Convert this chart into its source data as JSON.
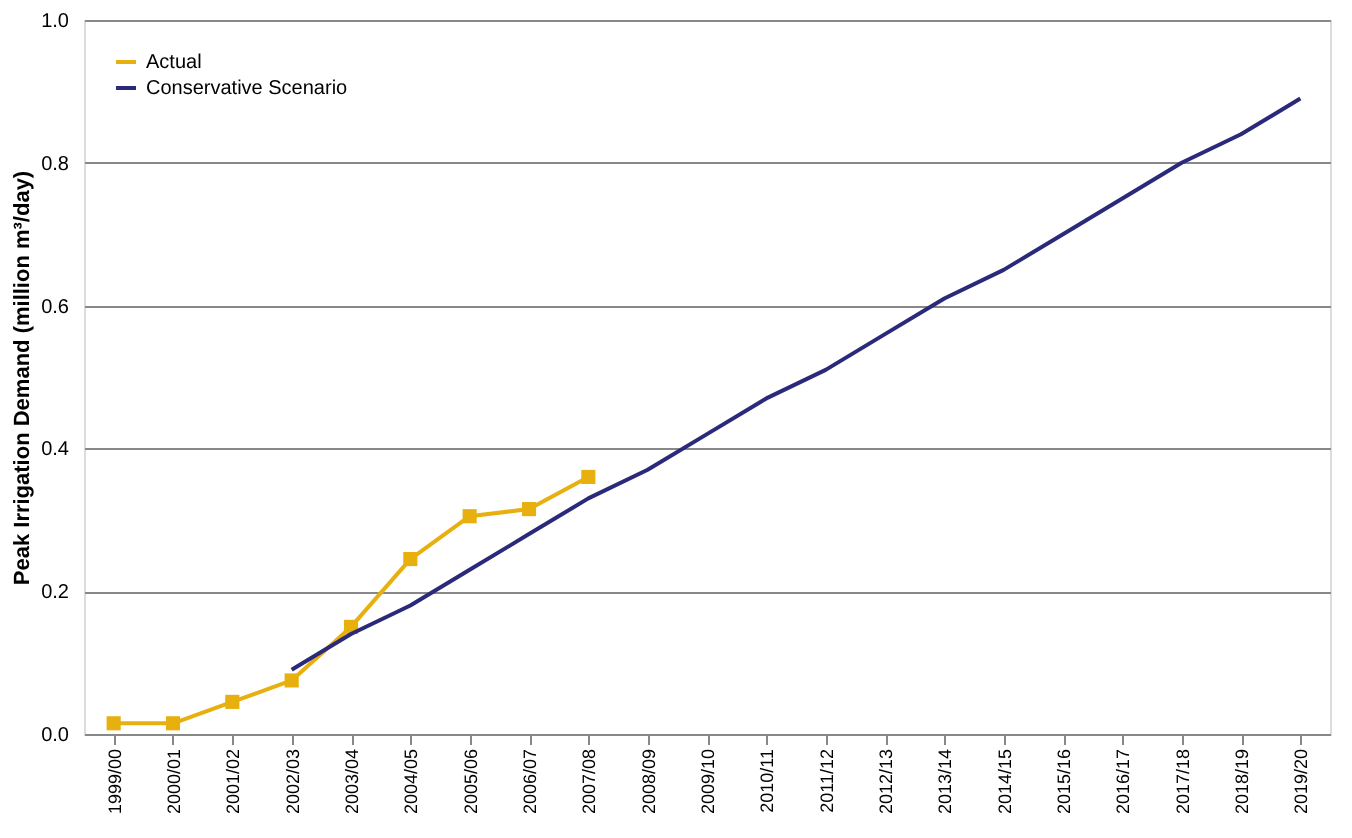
{
  "chart_data": {
    "type": "line",
    "ylabel": "Peak Irrigation Demand (million m³/day)",
    "categories": [
      "1999/00",
      "2000/01",
      "2001/02",
      "2002/03",
      "2003/04",
      "2004/05",
      "2005/06",
      "2006/07",
      "2007/08",
      "2008/09",
      "2009/10",
      "2010/11",
      "2011/12",
      "2012/13",
      "2013/14",
      "2014/15",
      "2015/16",
      "2016/17",
      "2017/18",
      "2018/19",
      "2019/20"
    ],
    "series": [
      {
        "name": "Actual",
        "color": "#e8b00f",
        "marker": "square",
        "values": [
          0.015,
          0.015,
          0.045,
          0.075,
          0.15,
          0.245,
          0.305,
          0.315,
          0.36,
          null,
          null,
          null,
          null,
          null,
          null,
          null,
          null,
          null,
          null,
          null,
          null
        ]
      },
      {
        "name": "Conservative Scenario",
        "color": "#2b2a7a",
        "marker": "none",
        "values": [
          null,
          null,
          null,
          0.09,
          0.14,
          0.18,
          0.23,
          0.28,
          0.33,
          0.37,
          0.42,
          0.47,
          0.51,
          0.56,
          0.61,
          0.65,
          0.7,
          0.75,
          0.8,
          0.84,
          0.89
        ]
      }
    ],
    "ylim": [
      0,
      1.0
    ],
    "yticks": [
      {
        "value": 0,
        "label": "0.0"
      },
      {
        "value": 0.2,
        "label": "0.2"
      },
      {
        "value": 0.4,
        "label": "0.4"
      },
      {
        "value": 0.6,
        "label": "0.6"
      },
      {
        "value": 0.8,
        "label": "0.8"
      },
      {
        "value": 1.0,
        "label": "1.0"
      }
    ],
    "grid": "y",
    "legend": "top left",
    "line_style": "solid"
  }
}
